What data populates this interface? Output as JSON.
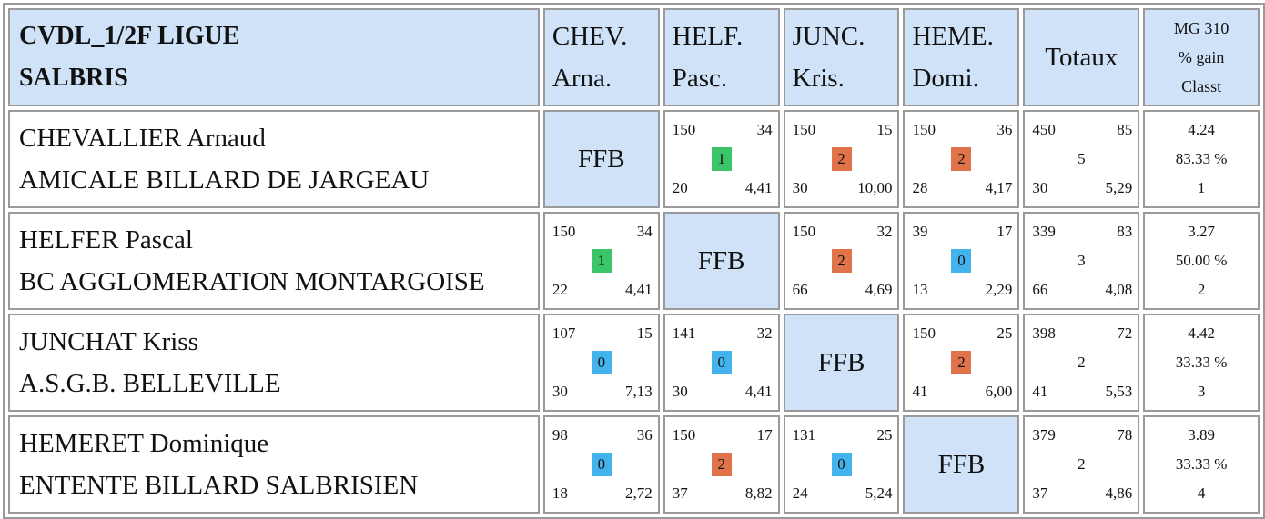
{
  "header": {
    "title_line1": "CVDL_1/2F LIGUE",
    "title_line2": "SALBRIS",
    "columns": [
      {
        "l1": "CHEV.",
        "l2": "Arna."
      },
      {
        "l1": "HELF.",
        "l2": "Pasc."
      },
      {
        "l1": "JUNC.",
        "l2": "Kris."
      },
      {
        "l1": "HEME.",
        "l2": "Domi."
      }
    ],
    "totals_label": "Totaux",
    "last_l1": "MG 310",
    "last_l2": "% gain",
    "last_l3": "Classt"
  },
  "ffb_label": "FFB",
  "badge_colors": {
    "1": "#3cc468",
    "2": "#e0734a",
    "0": "#43b3ee"
  },
  "players": [
    {
      "name": "CHEVALLIER Arnaud",
      "club": "AMICALE BILLARD DE JARGEAU",
      "matches": [
        null,
        {
          "pts": "150",
          "hs": "34",
          "res": "1",
          "rep": "20",
          "moy": "4,41"
        },
        {
          "pts": "150",
          "hs": "15",
          "res": "2",
          "rep": "30",
          "moy": "10,00"
        },
        {
          "pts": "150",
          "hs": "36",
          "res": "2",
          "rep": "28",
          "moy": "4,17"
        }
      ],
      "totals": {
        "pts": "450",
        "hs": "85",
        "mid": "5",
        "rep": "30",
        "moy": "5,29"
      },
      "last": {
        "mg": "4.24",
        "gain": "83.33 %",
        "rank": "1"
      }
    },
    {
      "name": "HELFER Pascal",
      "club": "BC AGGLOMERATION MONTARGOISE",
      "matches": [
        {
          "pts": "150",
          "hs": "34",
          "res": "1",
          "rep": "22",
          "moy": "4,41"
        },
        null,
        {
          "pts": "150",
          "hs": "32",
          "res": "2",
          "rep": "66",
          "moy": "4,69"
        },
        {
          "pts": "39",
          "hs": "17",
          "res": "0",
          "rep": "13",
          "moy": "2,29"
        }
      ],
      "totals": {
        "pts": "339",
        "hs": "83",
        "mid": "3",
        "rep": "66",
        "moy": "4,08"
      },
      "last": {
        "mg": "3.27",
        "gain": "50.00 %",
        "rank": "2"
      }
    },
    {
      "name": "JUNCHAT Kriss",
      "club": "A.S.G.B. BELLEVILLE",
      "matches": [
        {
          "pts": "107",
          "hs": "15",
          "res": "0",
          "rep": "30",
          "moy": "7,13"
        },
        {
          "pts": "141",
          "hs": "32",
          "res": "0",
          "rep": "30",
          "moy": "4,41"
        },
        null,
        {
          "pts": "150",
          "hs": "25",
          "res": "2",
          "rep": "41",
          "moy": "6,00"
        }
      ],
      "totals": {
        "pts": "398",
        "hs": "72",
        "mid": "2",
        "rep": "41",
        "moy": "5,53"
      },
      "last": {
        "mg": "4.42",
        "gain": "33.33 %",
        "rank": "3"
      }
    },
    {
      "name": "HEMERET Dominique",
      "club": "ENTENTE BILLARD SALBRISIEN",
      "matches": [
        {
          "pts": "98",
          "hs": "36",
          "res": "0",
          "rep": "18",
          "moy": "2,72"
        },
        {
          "pts": "150",
          "hs": "17",
          "res": "2",
          "rep": "37",
          "moy": "8,82"
        },
        {
          "pts": "131",
          "hs": "25",
          "res": "0",
          "rep": "24",
          "moy": "5,24"
        },
        null
      ],
      "totals": {
        "pts": "379",
        "hs": "78",
        "mid": "2",
        "rep": "37",
        "moy": "4,86"
      },
      "last": {
        "mg": "3.89",
        "gain": "33.33 %",
        "rank": "4"
      }
    }
  ]
}
